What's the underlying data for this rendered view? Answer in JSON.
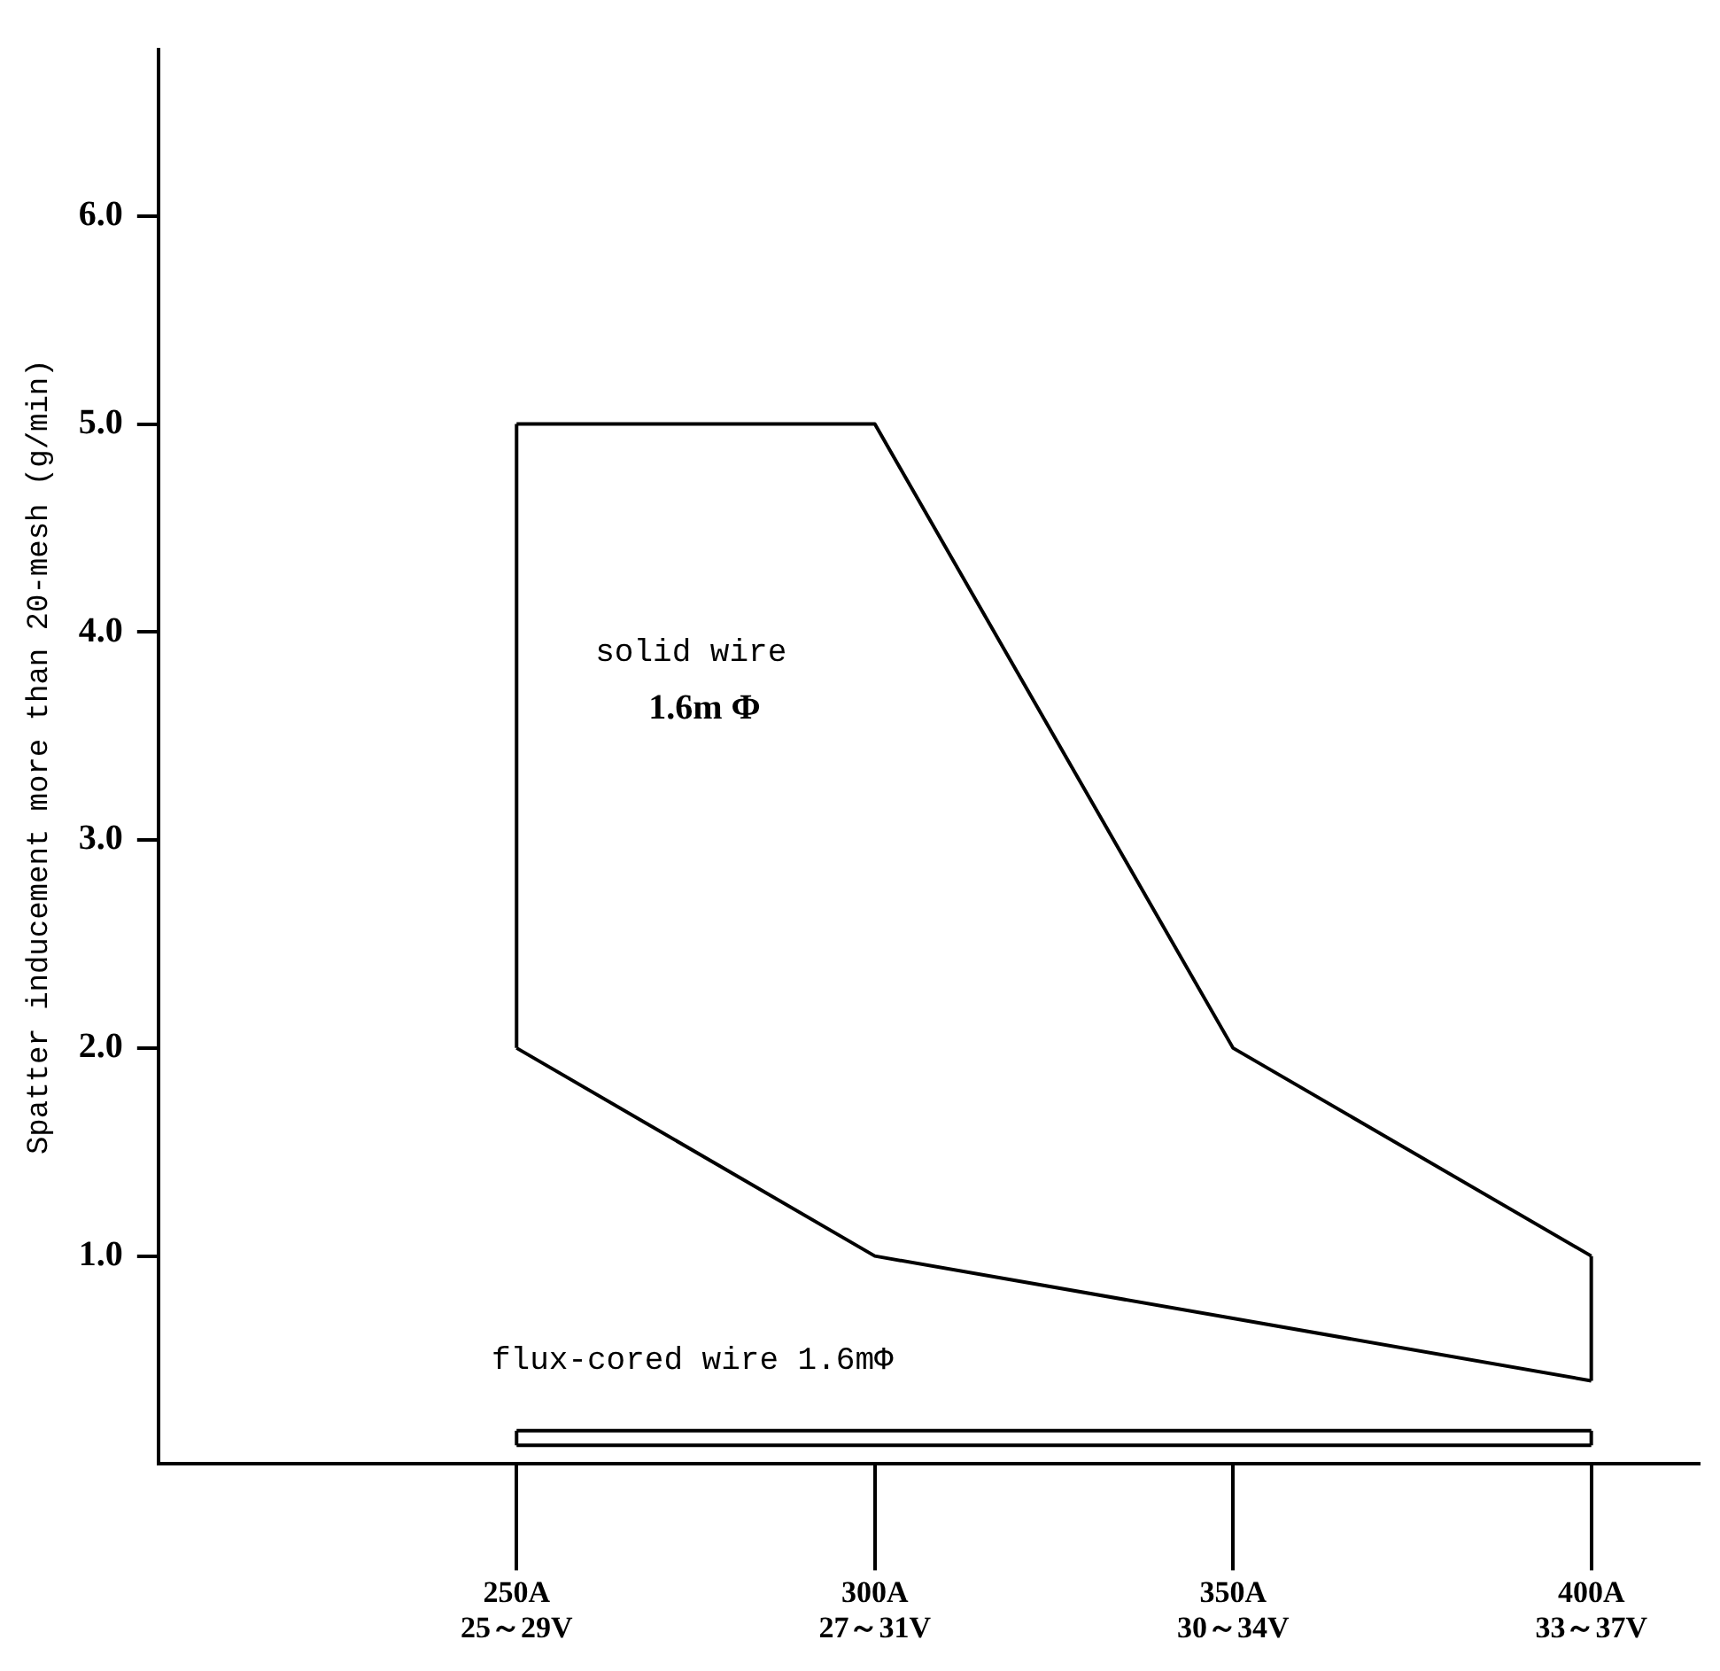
{
  "chart_data": {
    "type": "line",
    "ylabel": "Spatter inducement more than 20-mesh (g/min)",
    "categories": [
      null,
      "250A\n25～29V",
      "300A\n27～31V",
      "350A\n30～34V",
      "400A\n33～37V"
    ],
    "series": [
      {
        "color": "#000000",
        "values": [
          null,
          5.0,
          5.0,
          2.0,
          1.0
        ],
        "errors": [
          null,
          [
            2.0,
            5.0
          ],
          null,
          null,
          [
            0.4,
            1.0
          ]
        ]
      },
      {
        "color": "#000000",
        "values": [
          null,
          2.0,
          1.0,
          0.7,
          0.4
        ]
      },
      {
        "color": "#000000",
        "values": [
          null,
          0.16,
          0.16,
          0.16,
          0.16
        ],
        "errors": [
          null,
          [
            0.09,
            0.16
          ],
          null,
          null,
          [
            0.09,
            0.16
          ]
        ]
      },
      {
        "color": "#000000",
        "values": [
          null,
          0.09,
          0.09,
          0.09,
          0.09
        ]
      }
    ],
    "ylim": [
      0,
      6.8
    ],
    "yticks": [
      {
        "value": 1,
        "label": "1.0"
      },
      {
        "value": 2,
        "label": "2.0"
      },
      {
        "value": 3,
        "label": "3.0"
      },
      {
        "value": 4,
        "label": "4.0"
      },
      {
        "value": 5,
        "label": "5.0"
      },
      {
        "value": 6,
        "label": "6.0"
      }
    ],
    "grid": false,
    "legend": false,
    "marker": "none",
    "line_style": "solid",
    "annotations": [
      "solid wire\n1.6m Φ",
      "flux-cored wire 1.6mΦ"
    ]
  }
}
